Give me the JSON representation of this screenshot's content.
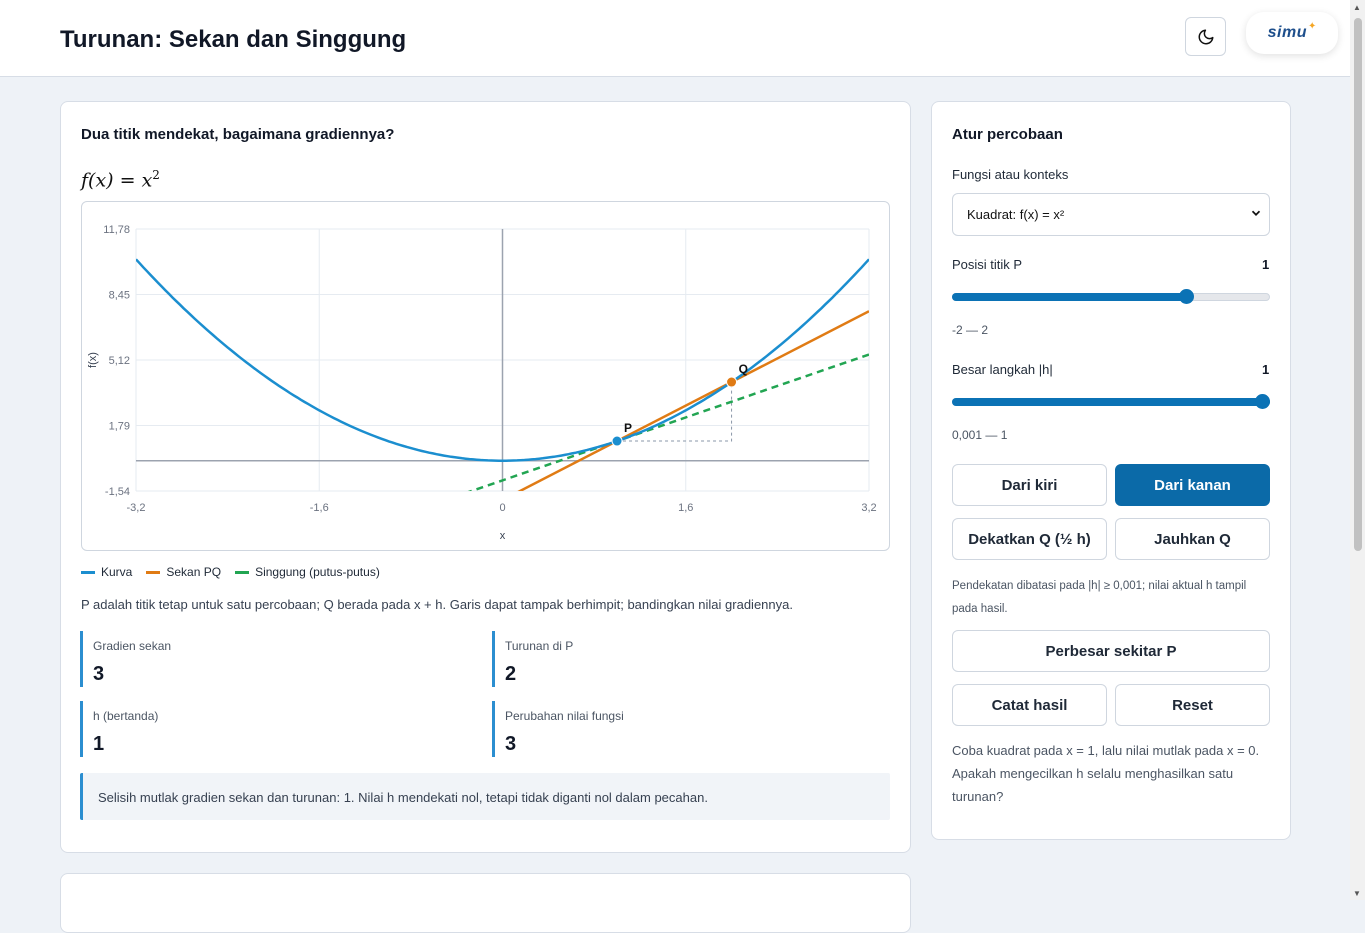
{
  "header": {
    "title": "Turunan: Sekan dan Singgung",
    "theme_icon": "moon-icon",
    "logo_text": "simu"
  },
  "main": {
    "question": "Dua titik mendekat, bagaimana gradiennya?",
    "formula_base": "f(x) = x",
    "formula_exp": "2",
    "legend": {
      "curve": "Kurva",
      "secant": "Sekan PQ",
      "tangent": "Singgung (putus-putus)"
    },
    "note": "P adalah titik tetap untuk satu percobaan; Q berada pada x + h. Garis dapat tampak berhimpit; bandingkan nilai gradiennya.",
    "stats": [
      {
        "label": "Gradien sekan",
        "value": "3"
      },
      {
        "label": "Turunan di P",
        "value": "2"
      },
      {
        "label": "h (bertanda)",
        "value": "1"
      },
      {
        "label": "Perubahan nilai fungsi",
        "value": "3"
      }
    ],
    "info": "Selisih mutlak gradien sekan dan turunan: 1. Nilai h mendekati nol, tetapi tidak diganti nol dalam pecahan."
  },
  "chart_data": {
    "type": "line",
    "function": "x^2",
    "xlabel": "x",
    "ylabel": "f(x)",
    "xlim": [
      -3.2,
      3.2
    ],
    "ylim": [
      -1.54,
      11.78
    ],
    "x_ticks": [
      "-3,2",
      "-1,6",
      "0",
      "1,6",
      "3,2"
    ],
    "y_ticks": [
      "11,78",
      "8,45",
      "5,12",
      "1,79",
      "-1,54"
    ],
    "grid": true,
    "point_P": {
      "label": "P",
      "x": 1,
      "y": 1
    },
    "point_Q": {
      "label": "Q",
      "x": 2,
      "y": 4
    },
    "secant_slope": 3,
    "tangent_slope": 2,
    "colors": {
      "curve": "#1b8ecf",
      "secant": "#e07b14",
      "tangent": "#22a552"
    }
  },
  "side": {
    "title": "Atur percobaan",
    "function_label": "Fungsi atau konteks",
    "function_value": "Kuadrat: f(x) = x²",
    "p_label": "Posisi titik P",
    "p_value": "1",
    "p_fraction": 0.75,
    "p_range": "-2 — 2",
    "h_label": "Besar langkah |h|",
    "h_value": "1",
    "h_fraction": 1.0,
    "h_range": "0,001 — 1",
    "btn_left": "Dari kiri",
    "btn_right": "Dari kanan",
    "btn_closer": "Dekatkan Q (½ h)",
    "btn_farther": "Jauhkan Q",
    "hint": "Pendekatan dibatasi pada |h| ≥ 0,001; nilai aktual h tampil pada hasil.",
    "btn_zoom": "Perbesar sekitar P",
    "btn_record": "Catat hasil",
    "btn_reset": "Reset",
    "tip": "Coba kuadrat pada x = 1, lalu nilai mutlak pada x = 0. Apakah mengecilkan h selalu menghasilkan satu turunan?"
  }
}
